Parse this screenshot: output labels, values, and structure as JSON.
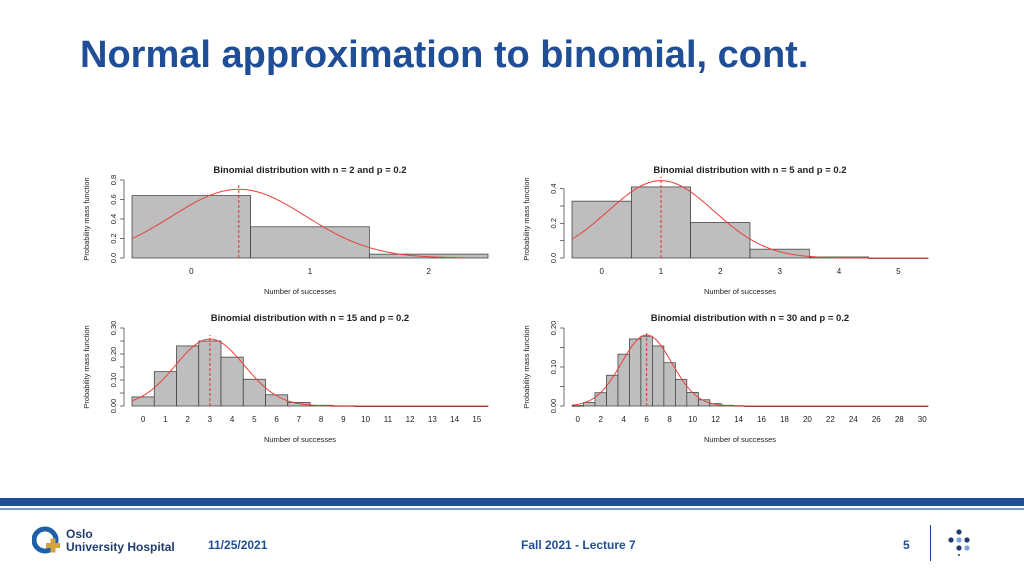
{
  "slide": {
    "title": "Normal approximation to binomial, cont."
  },
  "footer": {
    "date": "11/25/2021",
    "course": "Fall 2021 - Lecture 7",
    "page_number": "5",
    "logo_line1": "Oslo",
    "logo_line2": "University Hospital"
  },
  "colors": {
    "brand": "#1f4e96",
    "bar_fill": "#bebebe",
    "curve": "#e8403a",
    "mean_line": "#d9302c"
  },
  "chart_data": [
    {
      "type": "bar",
      "title": "Binomial distribution with n = 2 and p = 0.2",
      "xlabel": "Number of successes",
      "ylabel": "Probability mass function",
      "categories": [
        "0",
        "1",
        "2"
      ],
      "values": [
        0.64,
        0.32,
        0.04
      ],
      "x_tick_labels": [
        "0",
        "1",
        "2"
      ],
      "y_ticks": [
        0,
        0.2,
        0.4,
        0.6,
        0.8
      ],
      "y_tick_labels": [
        "0.0",
        "0.2",
        "0.4",
        "0.6",
        "0.8"
      ],
      "ylim": [
        0,
        0.8
      ],
      "xlim": [
        -0.5,
        2.5
      ],
      "mean": 0.4,
      "sd": 0.566,
      "curve_xlim": [
        -0.5,
        2.3
      ]
    },
    {
      "type": "bar",
      "title": "Binomial distribution with n = 5 and p = 0.2",
      "xlabel": "Number of successes",
      "ylabel": "Probability mass function",
      "categories": [
        "0",
        "1",
        "2",
        "3",
        "4",
        "5"
      ],
      "values": [
        0.328,
        0.41,
        0.205,
        0.051,
        0.006,
        0.0003
      ],
      "x_tick_labels": [
        "0",
        "1",
        "2",
        "3",
        "4",
        "5"
      ],
      "y_ticks": [
        0,
        0.1,
        0.2,
        0.3,
        0.4
      ],
      "y_tick_labels": [
        "0.0",
        "",
        "0.2",
        "",
        "0.4"
      ],
      "ylim": [
        0,
        0.45
      ],
      "xlim": [
        -0.5,
        5.5
      ],
      "mean": 1,
      "sd": 0.894,
      "curve_xlim": [
        -0.5,
        5.5
      ]
    },
    {
      "type": "bar",
      "title": "Binomial distribution with n = 15 and p = 0.2",
      "xlabel": "Number of successes",
      "ylabel": "Probability mass function",
      "categories": [
        "0",
        "1",
        "2",
        "3",
        "4",
        "5",
        "6",
        "7",
        "8",
        "9",
        "10",
        "11",
        "12",
        "13",
        "14",
        "15"
      ],
      "values": [
        0.035,
        0.132,
        0.231,
        0.25,
        0.188,
        0.103,
        0.043,
        0.014,
        0.003,
        0.001,
        0,
        0,
        0,
        0,
        0,
        0
      ],
      "x_tick_labels": [
        "0",
        "1",
        "2",
        "3",
        "4",
        "5",
        "6",
        "7",
        "8",
        "9",
        "10",
        "11",
        "12",
        "13",
        "14",
        "15"
      ],
      "y_ticks": [
        0,
        0.05,
        0.1,
        0.15,
        0.2,
        0.25,
        0.3
      ],
      "y_tick_labels": [
        "0.00",
        "",
        "0.10",
        "",
        "0.20",
        "",
        "0.30"
      ],
      "ylim": [
        0,
        0.3
      ],
      "xlim": [
        -0.5,
        15.5
      ],
      "mean": 3,
      "sd": 1.549,
      "curve_xlim": [
        -0.5,
        15.5
      ]
    },
    {
      "type": "bar",
      "title": "Binomial distribution with n = 30 and p = 0.2",
      "xlabel": "Number of successes",
      "ylabel": "Probability mass function",
      "categories": [
        "0",
        "1",
        "2",
        "3",
        "4",
        "5",
        "6",
        "7",
        "8",
        "9",
        "10",
        "11",
        "12",
        "13",
        "14",
        "15",
        "16",
        "17",
        "18",
        "19",
        "20",
        "21",
        "22",
        "23",
        "24",
        "25",
        "26",
        "27",
        "28",
        "29",
        "30"
      ],
      "values": [
        0.001,
        0.009,
        0.034,
        0.079,
        0.133,
        0.172,
        0.179,
        0.154,
        0.111,
        0.068,
        0.035,
        0.016,
        0.006,
        0.002,
        0.001,
        0,
        0,
        0,
        0,
        0,
        0,
        0,
        0,
        0,
        0,
        0,
        0,
        0,
        0,
        0,
        0
      ],
      "x_tick_labels": [
        "0",
        "2",
        "4",
        "6",
        "8",
        "10",
        "12",
        "14",
        "16",
        "18",
        "20",
        "22",
        "24",
        "26",
        "28",
        "30"
      ],
      "x_tick_values": [
        0,
        2,
        4,
        6,
        8,
        10,
        12,
        14,
        16,
        18,
        20,
        22,
        24,
        26,
        28,
        30
      ],
      "y_ticks": [
        0,
        0.05,
        0.1,
        0.15,
        0.2
      ],
      "y_tick_labels": [
        "0.00",
        "",
        "0.10",
        "",
        "0.20"
      ],
      "ylim": [
        0,
        0.2
      ],
      "xlim": [
        -0.5,
        30.5
      ],
      "mean": 6,
      "sd": 2.191,
      "curve_xlim": [
        -0.5,
        30.5
      ]
    }
  ]
}
